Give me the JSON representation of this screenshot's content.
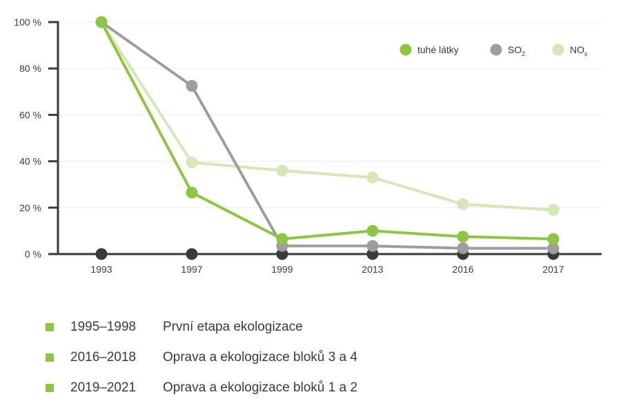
{
  "chart_data": {
    "type": "line",
    "categories": [
      "1993",
      "1997",
      "1999",
      "2013",
      "2016",
      "2017"
    ],
    "series": [
      {
        "name": "tuhé látky",
        "color": "#8dc63f",
        "values": [
          100,
          26.5,
          6.5,
          10,
          7.5,
          6.5
        ]
      },
      {
        "name": "SO",
        "name_sub": "2",
        "color": "#9d9d9d",
        "values": [
          100,
          72.5,
          3.5,
          3.5,
          2.5,
          2.5
        ]
      },
      {
        "name": "NO",
        "name_sub": "x",
        "color": "#d4e7b4",
        "values": [
          100,
          39.5,
          36,
          33,
          21.5,
          19
        ]
      }
    ],
    "y_ticks": [
      "0 %",
      "20 %",
      "40 %",
      "60 %",
      "80 %",
      "100 %"
    ],
    "y_tick_values": [
      0,
      20,
      40,
      60,
      80,
      100
    ],
    "ylim": [
      0,
      100
    ],
    "grid": true,
    "legend_position": "top-right",
    "axis_color": "#3a3a3a",
    "grid_color": "#ececec"
  },
  "notes": [
    {
      "period": "1995–1998",
      "text": "První etapa ekologizace"
    },
    {
      "period": "2016–2018",
      "text": "Oprava a ekologizace bloků 3 a 4"
    },
    {
      "period": "2019–2021",
      "text": "Oprava a ekologizace bloků 1 a 2"
    }
  ],
  "colors": {
    "bullet": "#8dc63f"
  }
}
